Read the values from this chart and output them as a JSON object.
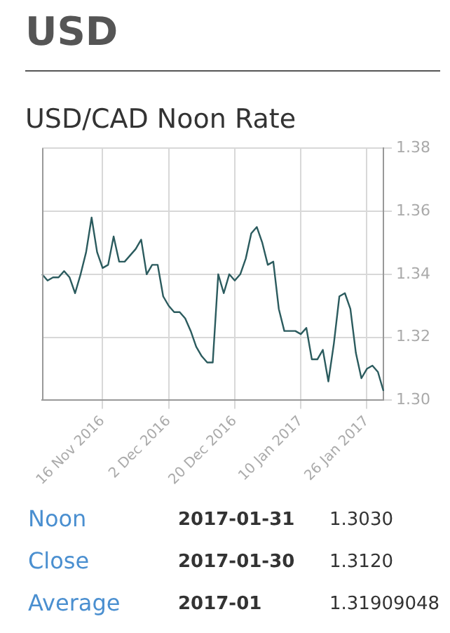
{
  "chart_data": {
    "type": "line",
    "title": "USD",
    "subtitle": "USD/CAD Noon Rate",
    "categories": [
      null,
      null,
      null,
      null,
      null,
      null,
      null,
      null,
      null,
      null,
      null,
      "16 Nov 2016",
      null,
      null,
      null,
      null,
      null,
      null,
      null,
      null,
      null,
      null,
      null,
      "2 Dec 2016",
      null,
      null,
      null,
      null,
      null,
      null,
      null,
      null,
      null,
      null,
      null,
      "20 Dec 2016",
      null,
      null,
      null,
      null,
      null,
      null,
      null,
      null,
      null,
      null,
      null,
      "10 Jan 2017",
      null,
      null,
      null,
      null,
      null,
      null,
      null,
      null,
      null,
      null,
      null,
      "26 Jan 2017",
      null,
      null,
      null
    ],
    "series": [
      {
        "color": "#2b5b5e",
        "values": [
          1.34,
          1.338,
          1.339,
          1.339,
          1.341,
          1.339,
          1.334,
          1.34,
          1.347,
          1.358,
          1.347,
          1.342,
          1.343,
          1.352,
          1.344,
          1.344,
          1.346,
          1.348,
          1.351,
          1.34,
          1.343,
          1.343,
          1.333,
          1.33,
          1.328,
          1.328,
          1.326,
          1.322,
          1.317,
          1.314,
          1.312,
          1.312,
          1.34,
          1.334,
          1.34,
          1.338,
          1.34,
          1.345,
          1.353,
          1.355,
          1.35,
          1.343,
          1.344,
          1.329,
          1.322,
          1.322,
          1.322,
          1.321,
          1.323,
          1.313,
          1.313,
          1.316,
          1.306,
          1.318,
          1.333,
          1.334,
          1.329,
          1.315,
          1.307,
          1.31,
          1.311,
          1.309,
          1.303
        ]
      }
    ],
    "ylim": [
      1.3,
      1.38
    ],
    "yticks": [
      {
        "value": 1.3,
        "label": "1.30"
      },
      1.32,
      1.34,
      1.36,
      1.38
    ],
    "grid": true,
    "legend": false,
    "marker": "none",
    "line_style": "solid",
    "annotations": [
      "Noon",
      "2017-01-31",
      "1.3030",
      "Close",
      "2017-01-30",
      "1.3120",
      "Average",
      "2017-01",
      "1.31909048"
    ]
  }
}
